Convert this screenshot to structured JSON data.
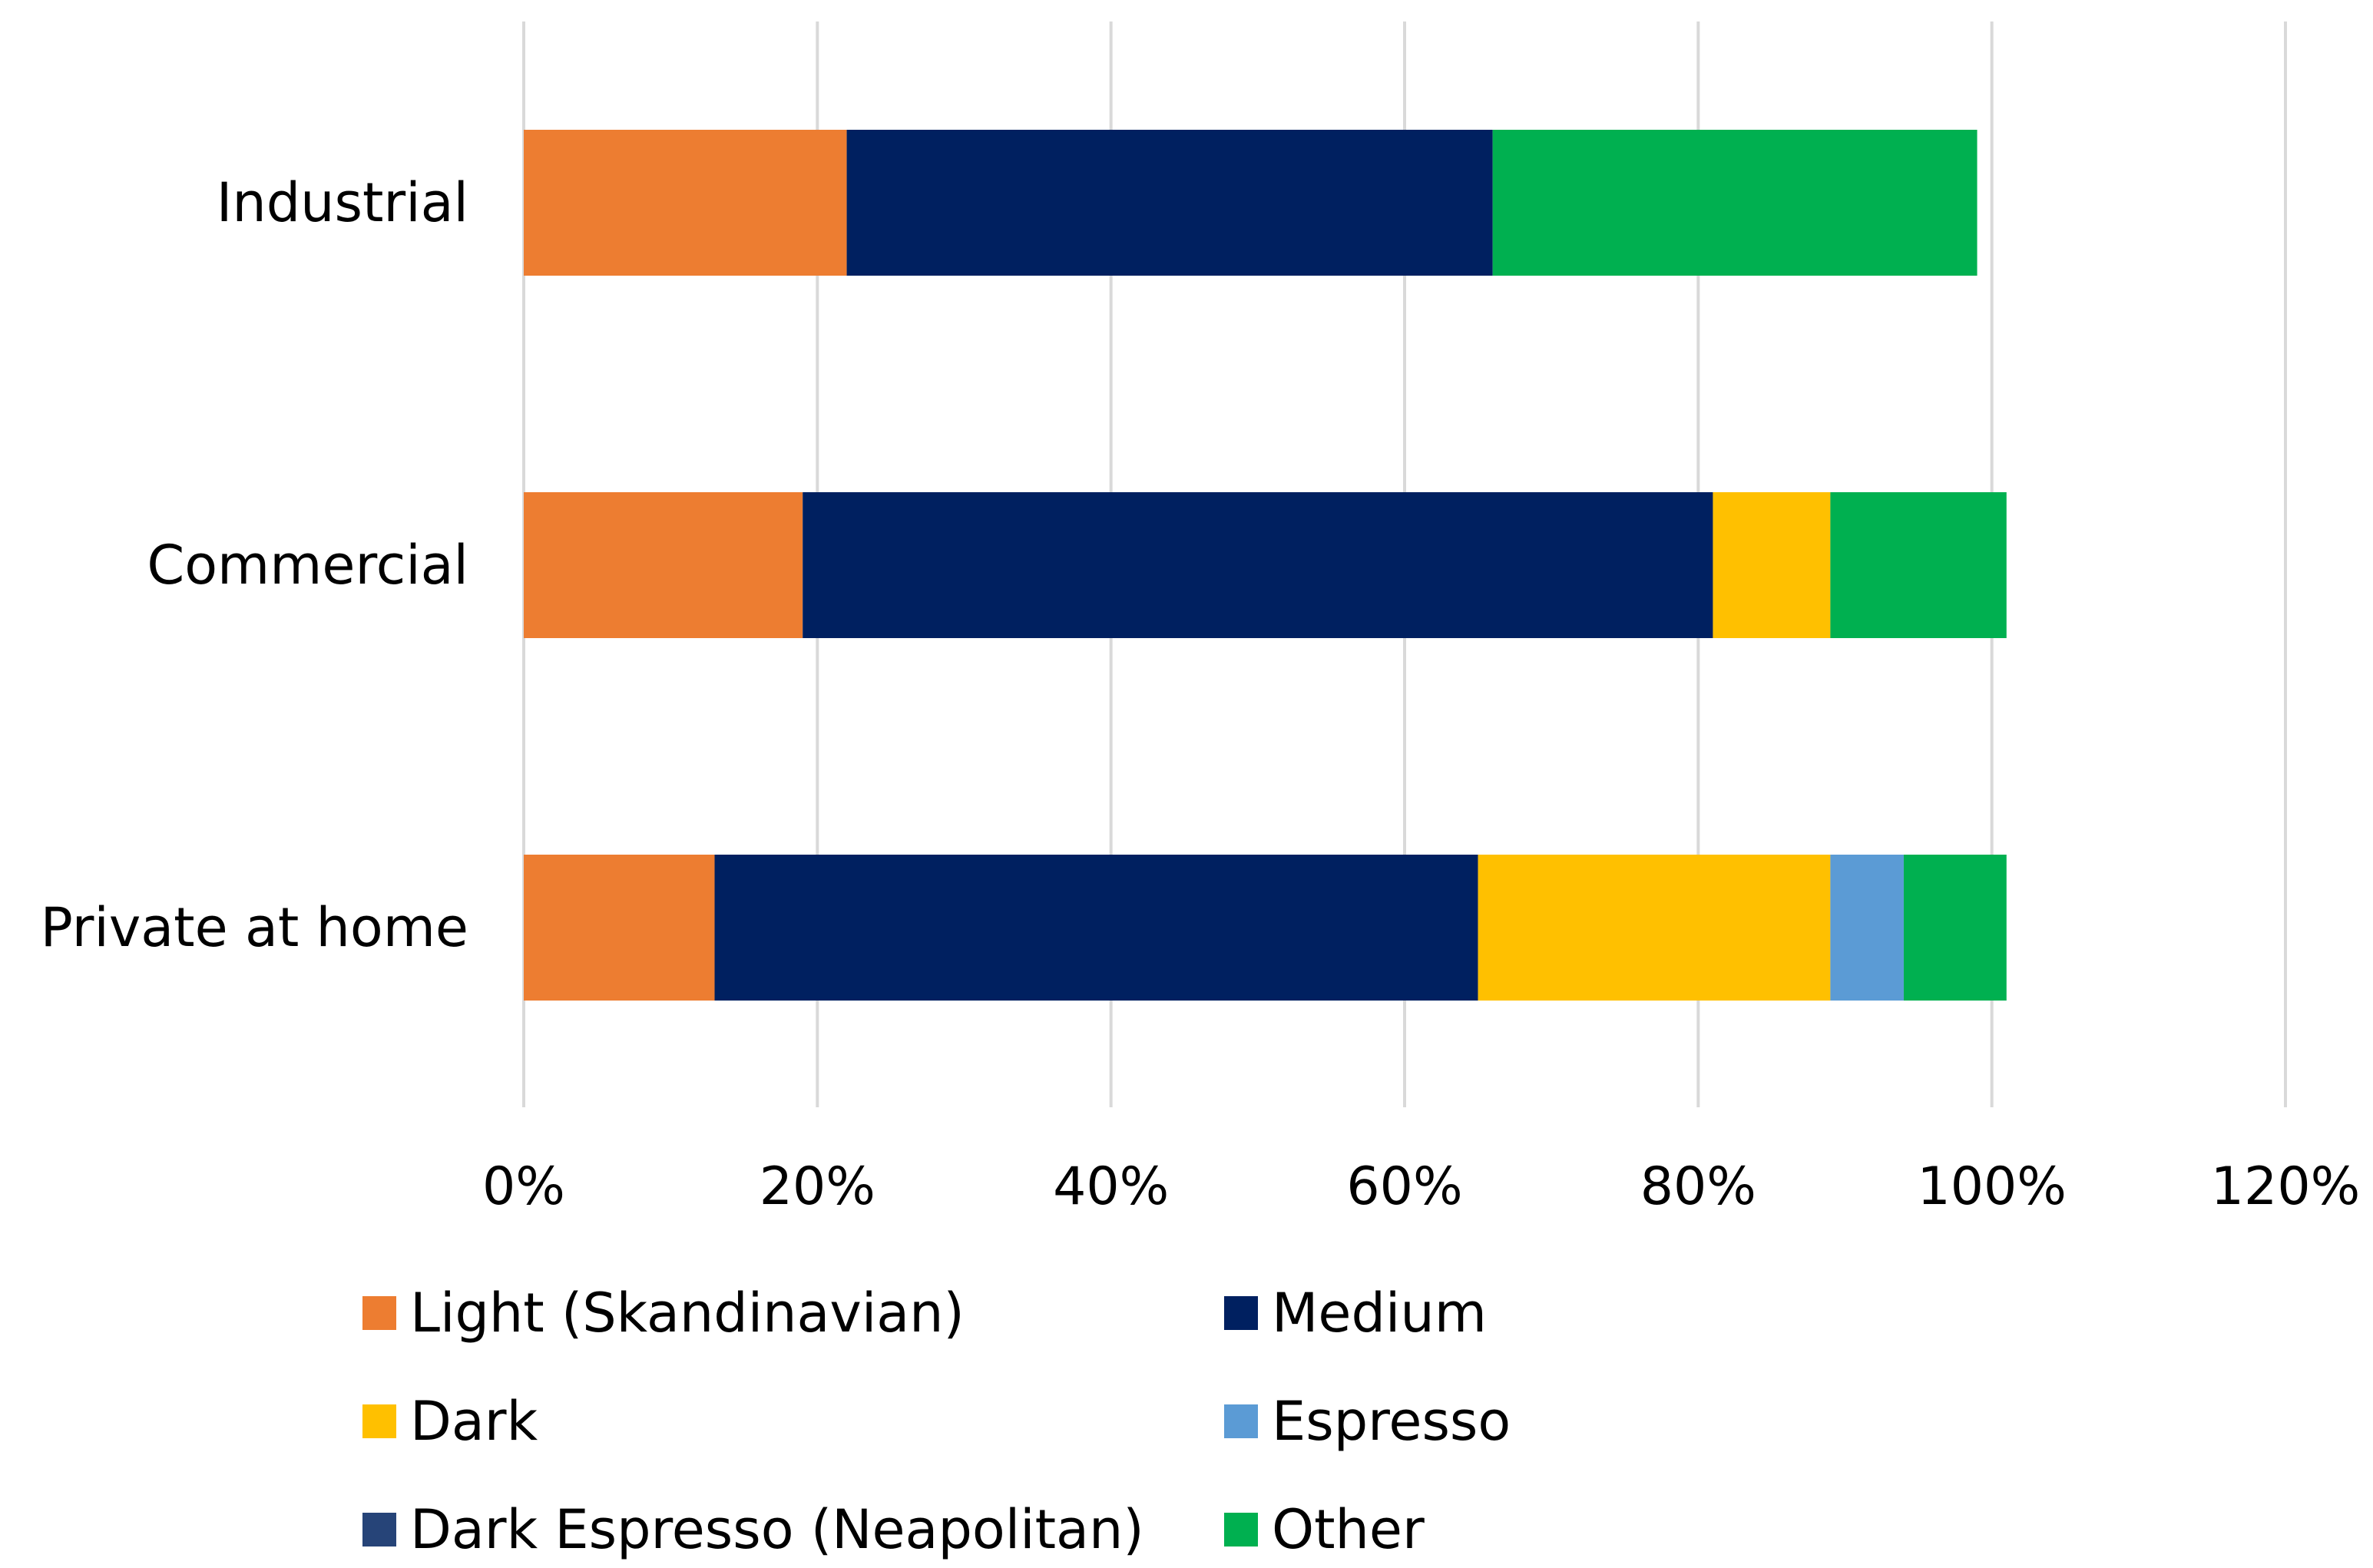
{
  "chart_data": {
    "type": "bar",
    "orientation": "horizontal",
    "stacked": true,
    "title": "",
    "xlabel": "",
    "ylabel": "",
    "categories": [
      "Industrial",
      "Commercial",
      "Private at home"
    ],
    "xlim": [
      0,
      120
    ],
    "xticks": [
      "0%",
      "20%",
      "40%",
      "60%",
      "80%",
      "100%",
      "120%"
    ],
    "grid": true,
    "legend_position": "bottom",
    "series": [
      {
        "name": "Light (Skandinavian)",
        "color": "#ED7D31",
        "values": [
          22,
          19,
          13
        ]
      },
      {
        "name": "Medium",
        "color": "#002060",
        "values": [
          44,
          62,
          52
        ]
      },
      {
        "name": "Dark",
        "color": "#FFC000",
        "values": [
          0,
          8,
          24
        ]
      },
      {
        "name": "Espresso",
        "color": "#5B9BD5",
        "values": [
          0,
          0,
          5
        ]
      },
      {
        "name": "Dark Espresso (Neapolitan)",
        "color": "#264478",
        "values": [
          0,
          0,
          0
        ]
      },
      {
        "name": "Other",
        "color": "#00B050",
        "values": [
          33,
          12,
          7
        ]
      }
    ]
  }
}
